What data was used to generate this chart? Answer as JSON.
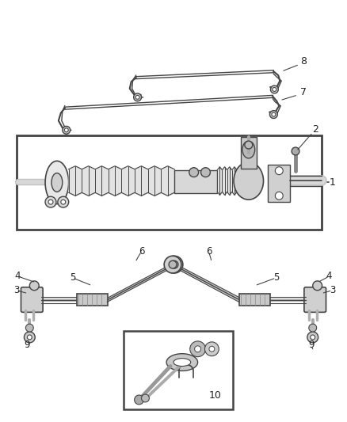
{
  "bg_color": "#ffffff",
  "lc": "#444444",
  "figsize": [
    4.38,
    5.33
  ],
  "dpi": 100
}
